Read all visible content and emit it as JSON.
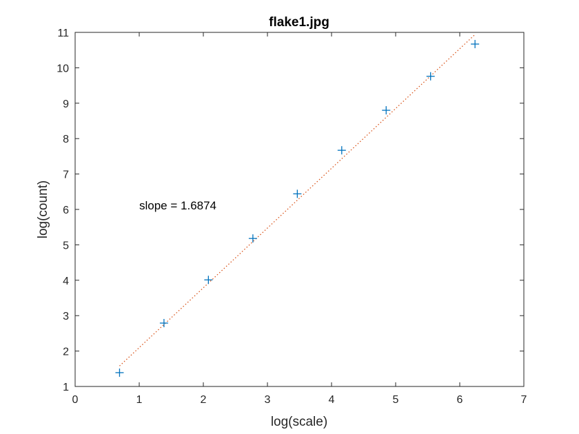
{
  "chart_data": {
    "type": "scatter",
    "title": "flake1.jpg",
    "xlabel": "log(scale)",
    "ylabel": "log(count)",
    "xlim": [
      0,
      7
    ],
    "ylim": [
      1,
      11
    ],
    "xticks": [
      0,
      1,
      2,
      3,
      4,
      5,
      6,
      7
    ],
    "yticks": [
      1,
      2,
      3,
      4,
      5,
      6,
      7,
      8,
      9,
      10,
      11
    ],
    "grid": false,
    "series": [
      {
        "marker": "+",
        "color": "#0072BD",
        "x": [
          0.693,
          1.386,
          2.079,
          2.773,
          3.466,
          4.159,
          4.852,
          5.545,
          6.238
        ],
        "y": [
          1.39,
          2.79,
          4.01,
          5.18,
          6.44,
          7.67,
          8.8,
          9.76,
          10.67
        ]
      }
    ],
    "fit_line": {
      "style": "dotted",
      "color": "#D95319",
      "slope": 1.6874,
      "x": [
        0.693,
        6.238
      ],
      "y": [
        1.58,
        10.94
      ]
    },
    "annotation": {
      "text": "slope = 1.6874",
      "x": 1.0,
      "y": 6.0
    }
  }
}
